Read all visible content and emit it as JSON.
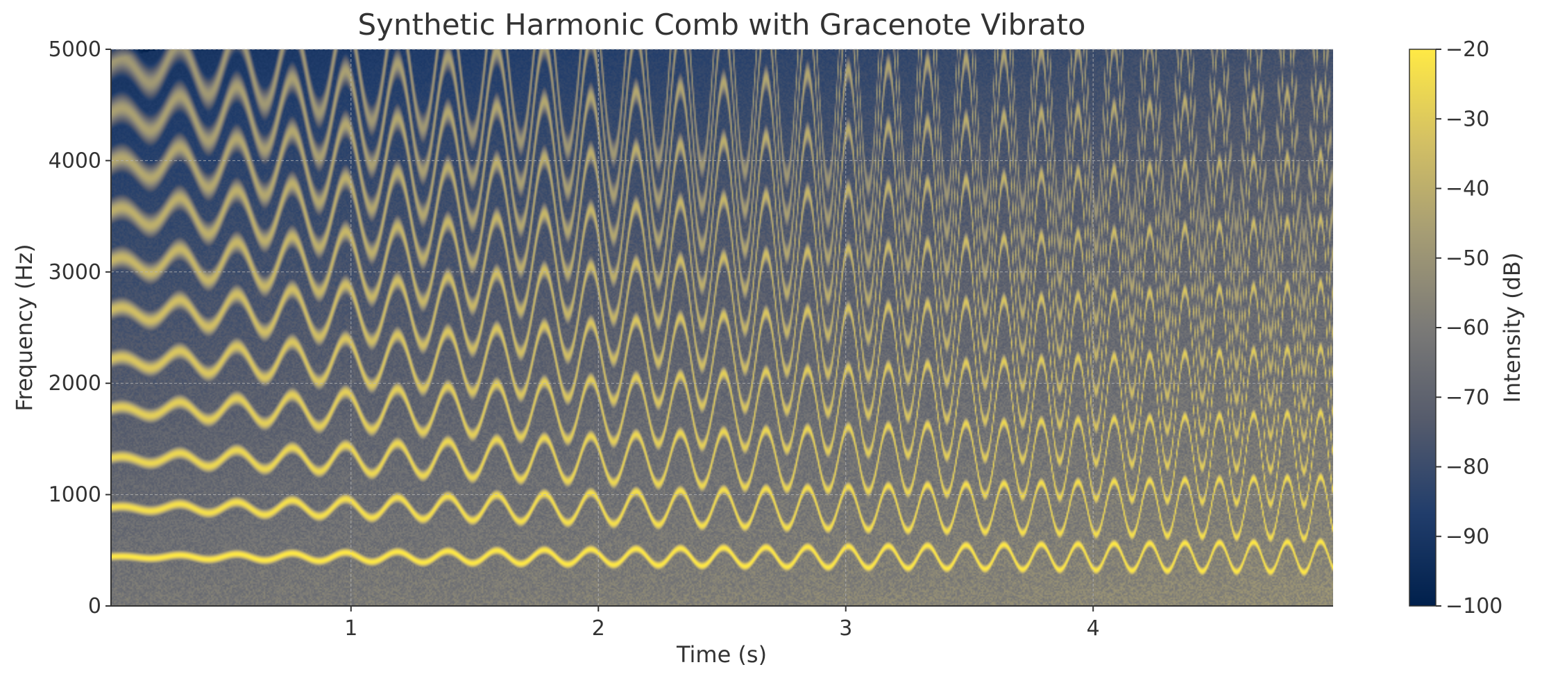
{
  "chart_data": {
    "type": "heatmap",
    "title": "Synthetic Harmonic Comb with Gracenote Vibrato",
    "xlabel": "Time (s)",
    "ylabel": "Frequency (Hz)",
    "xlim": [
      0.03,
      4.97
    ],
    "ylim": [
      0,
      5000
    ],
    "x_ticks": [
      1,
      2,
      3,
      4
    ],
    "y_ticks": [
      0,
      1000,
      2000,
      3000,
      4000,
      5000
    ],
    "grid": true,
    "colormap": "cividis",
    "colormap_stops": [
      "#00204c",
      "#213d6b",
      "#555b6c",
      "#7b7a77",
      "#a59c74",
      "#d3c064",
      "#ffe945"
    ],
    "colorbar": {
      "label": "Intensity (dB)",
      "range": [
        -100,
        -20
      ],
      "ticks": [
        -20,
        -30,
        -40,
        -50,
        -60,
        -70,
        -80,
        -90,
        -100
      ],
      "tick_labels": [
        "−20",
        "−30",
        "−40",
        "−50",
        "−60",
        "−70",
        "−80",
        "−90",
        "−100"
      ]
    },
    "signal": {
      "fundamental_hz": 440,
      "harmonics": 11,
      "vibrato_rate_hz_start": 4,
      "vibrato_rate_hz_end": 7.5,
      "vibrato_depth_start": 0.01,
      "vibrato_depth_end": 0.32,
      "peak_db": -20,
      "floor_db": -100
    }
  }
}
